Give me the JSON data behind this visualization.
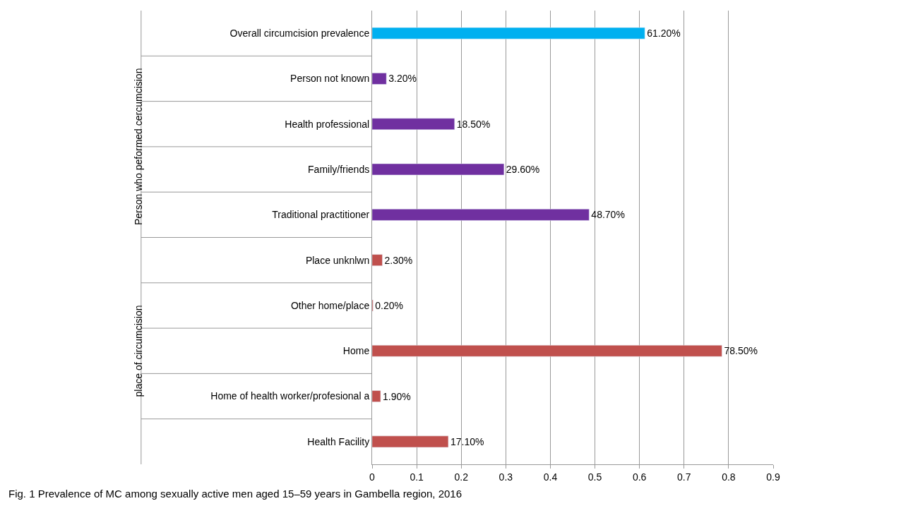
{
  "chart_data": {
    "type": "bar",
    "orientation": "horizontal",
    "categories": [
      "Overall circumcision prevalence",
      "Person not known",
      "Health professional",
      "Family/friends",
      "Traditional practitioner",
      "Place unknlwn",
      "Other home/place",
      "Home",
      "Home of health worker/profesional a",
      "Health Facility"
    ],
    "values": [
      0.612,
      0.032,
      0.185,
      0.296,
      0.487,
      0.023,
      0.002,
      0.785,
      0.019,
      0.171
    ],
    "colors": [
      "#00b0f0",
      "#7030a0",
      "#7030a0",
      "#7030a0",
      "#7030a0",
      "#c0504d",
      "#c0504d",
      "#c0504d",
      "#c0504d",
      "#c0504d"
    ],
    "value_labels": [
      "61.20%",
      "3.20%",
      "18.50%",
      "29.60%",
      "48.70%",
      "2.30%",
      "0.20%",
      "78.50%",
      "1.90%",
      "17.10%"
    ],
    "xlim": [
      0,
      0.9
    ],
    "xticks": [
      0,
      0.1,
      0.2,
      0.3,
      0.4,
      0.5,
      0.6,
      0.7,
      0.8,
      0.9
    ],
    "grid": "x",
    "legend": false,
    "annotations": [
      "Person who peformed cercumcision",
      "place of circumcision",
      "Fig. 1 Prevalence of MC among sexually active men aged 15–59 years in Gambella region, 2016"
    ]
  }
}
